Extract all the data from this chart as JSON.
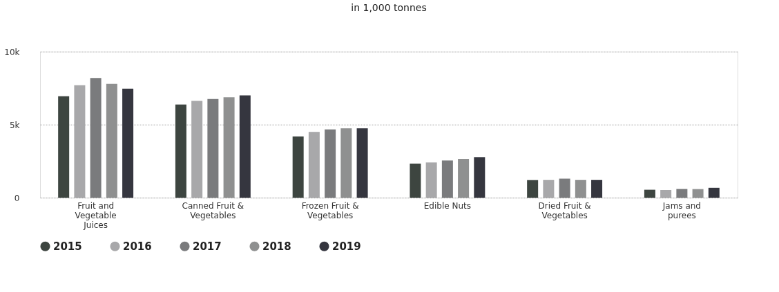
{
  "chart_data": {
    "type": "bar",
    "title": "in 1,000 tonnes",
    "categories": [
      "Fruit and Vegetable Juices",
      "Canned Fruit & Vegetables",
      "Frozen Fruit & Vegetables",
      "Edible Nuts",
      "Dried Fruit & Vegetables",
      "Jams and purees"
    ],
    "series": [
      {
        "name": "2015",
        "color": "#3d4540",
        "values": [
          6950,
          6380,
          4190,
          2330,
          1210,
          540
        ]
      },
      {
        "name": "2016",
        "color": "#a8a8aa",
        "values": [
          7700,
          6630,
          4490,
          2420,
          1220,
          520
        ]
      },
      {
        "name": "2017",
        "color": "#7a7b7d",
        "values": [
          8200,
          6760,
          4670,
          2550,
          1300,
          600
        ]
      },
      {
        "name": "2018",
        "color": "#8f9090",
        "values": [
          7800,
          6870,
          4750,
          2640,
          1220,
          590
        ]
      },
      {
        "name": "2019",
        "color": "#35363f",
        "values": [
          7470,
          7000,
          4750,
          2770,
          1220,
          670
        ]
      }
    ],
    "ylim": [
      0,
      10000
    ],
    "yticks": [
      {
        "value": 0,
        "label": "0"
      },
      {
        "value": 5000,
        "label": "5k"
      },
      {
        "value": 10000,
        "label": "10k"
      }
    ],
    "grid": "y",
    "legend": "bottom"
  }
}
